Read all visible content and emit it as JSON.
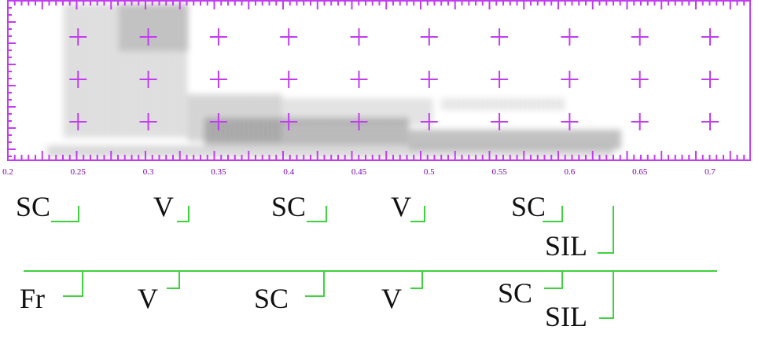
{
  "axis": {
    "ticks": [
      "0.2",
      "0.25",
      "0.3",
      "0.35",
      "0.4",
      "0.45",
      "0.5",
      "0.55",
      "0.6",
      "0.65",
      "0.7"
    ]
  },
  "tiers": [
    {
      "labels": [
        "SC",
        "V",
        "SC",
        "V",
        "SC",
        "SIL"
      ]
    },
    {
      "labels": [
        "Fr",
        "V",
        "SC",
        "V",
        "SC",
        "SIL"
      ]
    }
  ]
}
